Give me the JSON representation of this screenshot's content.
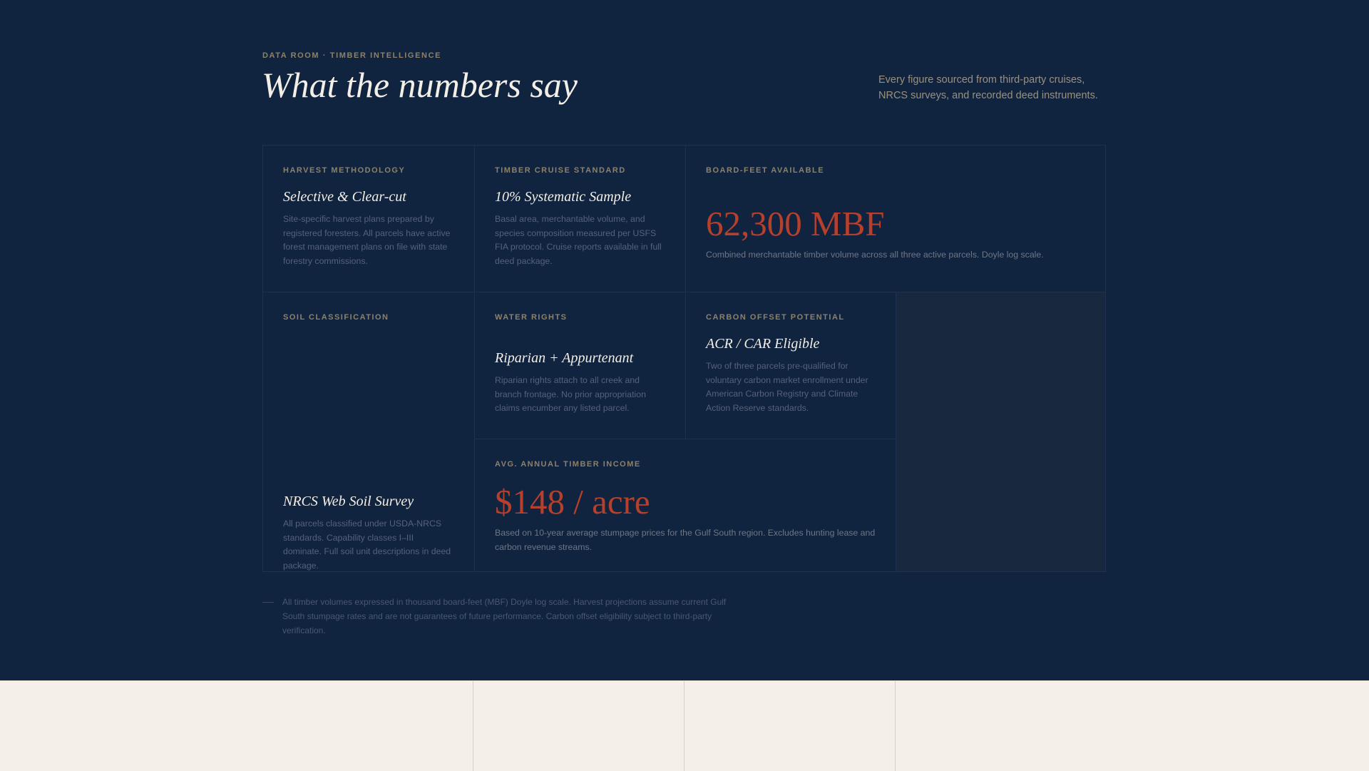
{
  "header": {
    "eyebrow": "DATA ROOM · TIMBER INTELLIGENCE",
    "title": "What the numbers say",
    "intro": "Every figure sourced from third-party cruises, NRCS surveys, and recorded deed instruments."
  },
  "cards": {
    "harvest": {
      "label": "Harvest Methodology",
      "title": "Selective & Clear-cut",
      "body": "Site-specific harvest plans prepared by registered foresters. All parcels have active forest management plans on file with state forestry commissions."
    },
    "cruise": {
      "label": "Timber Cruise Standard",
      "title": "10% Systematic Sample",
      "body": "Basal area, merchantable volume, and species composition measured per USFS FIA protocol. Cruise reports available in full deed package."
    },
    "board_feet": {
      "label": "Board-Feet Available",
      "value": "62,300 MBF",
      "body": "Combined merchantable timber volume across all three active parcels. Doyle log scale."
    },
    "soil": {
      "label": "Soil Classification",
      "title": "NRCS Web Soil Survey",
      "body": "All parcels classified under USDA-NRCS standards. Capability classes I–III dominate. Full soil unit descriptions in deed package."
    },
    "water": {
      "label": "Water Rights",
      "title": "Riparian + Appurtenant",
      "body": "Riparian rights attach to all creek and branch frontage. No prior appropriation claims encumber any listed parcel."
    },
    "carbon": {
      "label": "Carbon Offset Potential",
      "title": "ACR / CAR Eligible",
      "body": "Two of three parcels pre-qualified for voluntary carbon market enrollment under American Carbon Registry and Climate Action Reserve standards."
    },
    "income": {
      "label": "Avg. Annual Timber Income",
      "value": "$148 / acre",
      "body": "Based on 10-year average stumpage prices for the Gulf South region. Excludes hunting lease and carbon revenue streams."
    }
  },
  "footnote": "All timber volumes expressed in thousand board-feet (MBF) Doyle log scale. Harvest projections assume current Gulf South stumpage rates and are not guarantees of future performance. Carbon offset eligibility subject to third-party verification.",
  "colors": {
    "background": "#10233f",
    "accent": "#b7402c",
    "label": "#8d8269",
    "cream": "#f4efe8"
  }
}
